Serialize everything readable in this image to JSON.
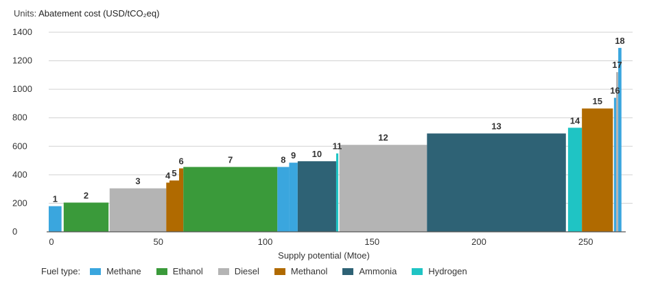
{
  "units": {
    "prefix": "Units:",
    "label": "Abatement cost (USD/tCO₂eq)"
  },
  "legend": {
    "title": "Fuel type:"
  },
  "chart_data": {
    "type": "bar",
    "subtype": "marginal abatement cost curve (variable-width bars)",
    "ylabel": "Abatement cost (USD/tCO₂eq)",
    "xlabel": "Supply potential (Mtoe)",
    "xlim": [
      0,
      270
    ],
    "ylim": [
      0,
      1400
    ],
    "x_ticks": [
      0,
      50,
      100,
      150,
      200,
      250
    ],
    "y_ticks": [
      0,
      200,
      400,
      600,
      800,
      1000,
      1200,
      1400
    ],
    "grid": "horizontal",
    "legend_position": "bottom",
    "fuel_types": [
      {
        "name": "Methane",
        "color": "#3aa6de"
      },
      {
        "name": "Ethanol",
        "color": "#3a9a3a"
      },
      {
        "name": "Diesel",
        "color": "#b4b4b4"
      },
      {
        "name": "Methanol",
        "color": "#b06a00"
      },
      {
        "name": "Ammonia",
        "color": "#2e6275"
      },
      {
        "name": "Hydrogen",
        "color": "#1fc4c4"
      }
    ],
    "bars": [
      {
        "label": "1",
        "fuel": "Methane",
        "x0": 0,
        "x1": 6,
        "value": 180
      },
      {
        "label": "2",
        "fuel": "Ethanol",
        "x0": 7,
        "x1": 28,
        "value": 205
      },
      {
        "label": "3",
        "fuel": "Diesel",
        "x0": 28.5,
        "x1": 55,
        "value": 305
      },
      {
        "label": "4",
        "fuel": "Methanol",
        "x0": 55,
        "x1": 56.5,
        "value": 345
      },
      {
        "label": "5",
        "fuel": "Methanol",
        "x0": 56.5,
        "x1": 61,
        "value": 360
      },
      {
        "label": "6",
        "fuel": "Methanol",
        "x0": 61,
        "x1": 63,
        "value": 445
      },
      {
        "label": "7",
        "fuel": "Ethanol",
        "x0": 63,
        "x1": 107,
        "value": 455
      },
      {
        "label": "8",
        "fuel": "Methane",
        "x0": 107,
        "x1": 112.5,
        "value": 455
      },
      {
        "label": "9",
        "fuel": "Methane",
        "x0": 112.5,
        "x1": 116.5,
        "value": 485
      },
      {
        "label": "10",
        "fuel": "Ammonia",
        "x0": 116.5,
        "x1": 134.5,
        "value": 495
      },
      {
        "label": "11",
        "fuel": "Hydrogen",
        "x0": 134.5,
        "x1": 135.5,
        "value": 550
      },
      {
        "label": "12",
        "fuel": "Diesel",
        "x0": 136,
        "x1": 177,
        "value": 610
      },
      {
        "label": "13",
        "fuel": "Ammonia",
        "x0": 177,
        "x1": 242,
        "value": 690
      },
      {
        "label": "14",
        "fuel": "Hydrogen",
        "x0": 243,
        "x1": 249.5,
        "value": 730
      },
      {
        "label": "15",
        "fuel": "Methanol",
        "x0": 249.5,
        "x1": 264,
        "value": 865
      },
      {
        "label": "16",
        "fuel": "Methane",
        "x0": 264.5,
        "x1": 265.5,
        "value": 940
      },
      {
        "label": "17",
        "fuel": "Diesel",
        "x0": 265.5,
        "x1": 266.5,
        "value": 1120
      },
      {
        "label": "18",
        "fuel": "Methane",
        "x0": 266.5,
        "x1": 268,
        "value": 1290
      }
    ]
  }
}
